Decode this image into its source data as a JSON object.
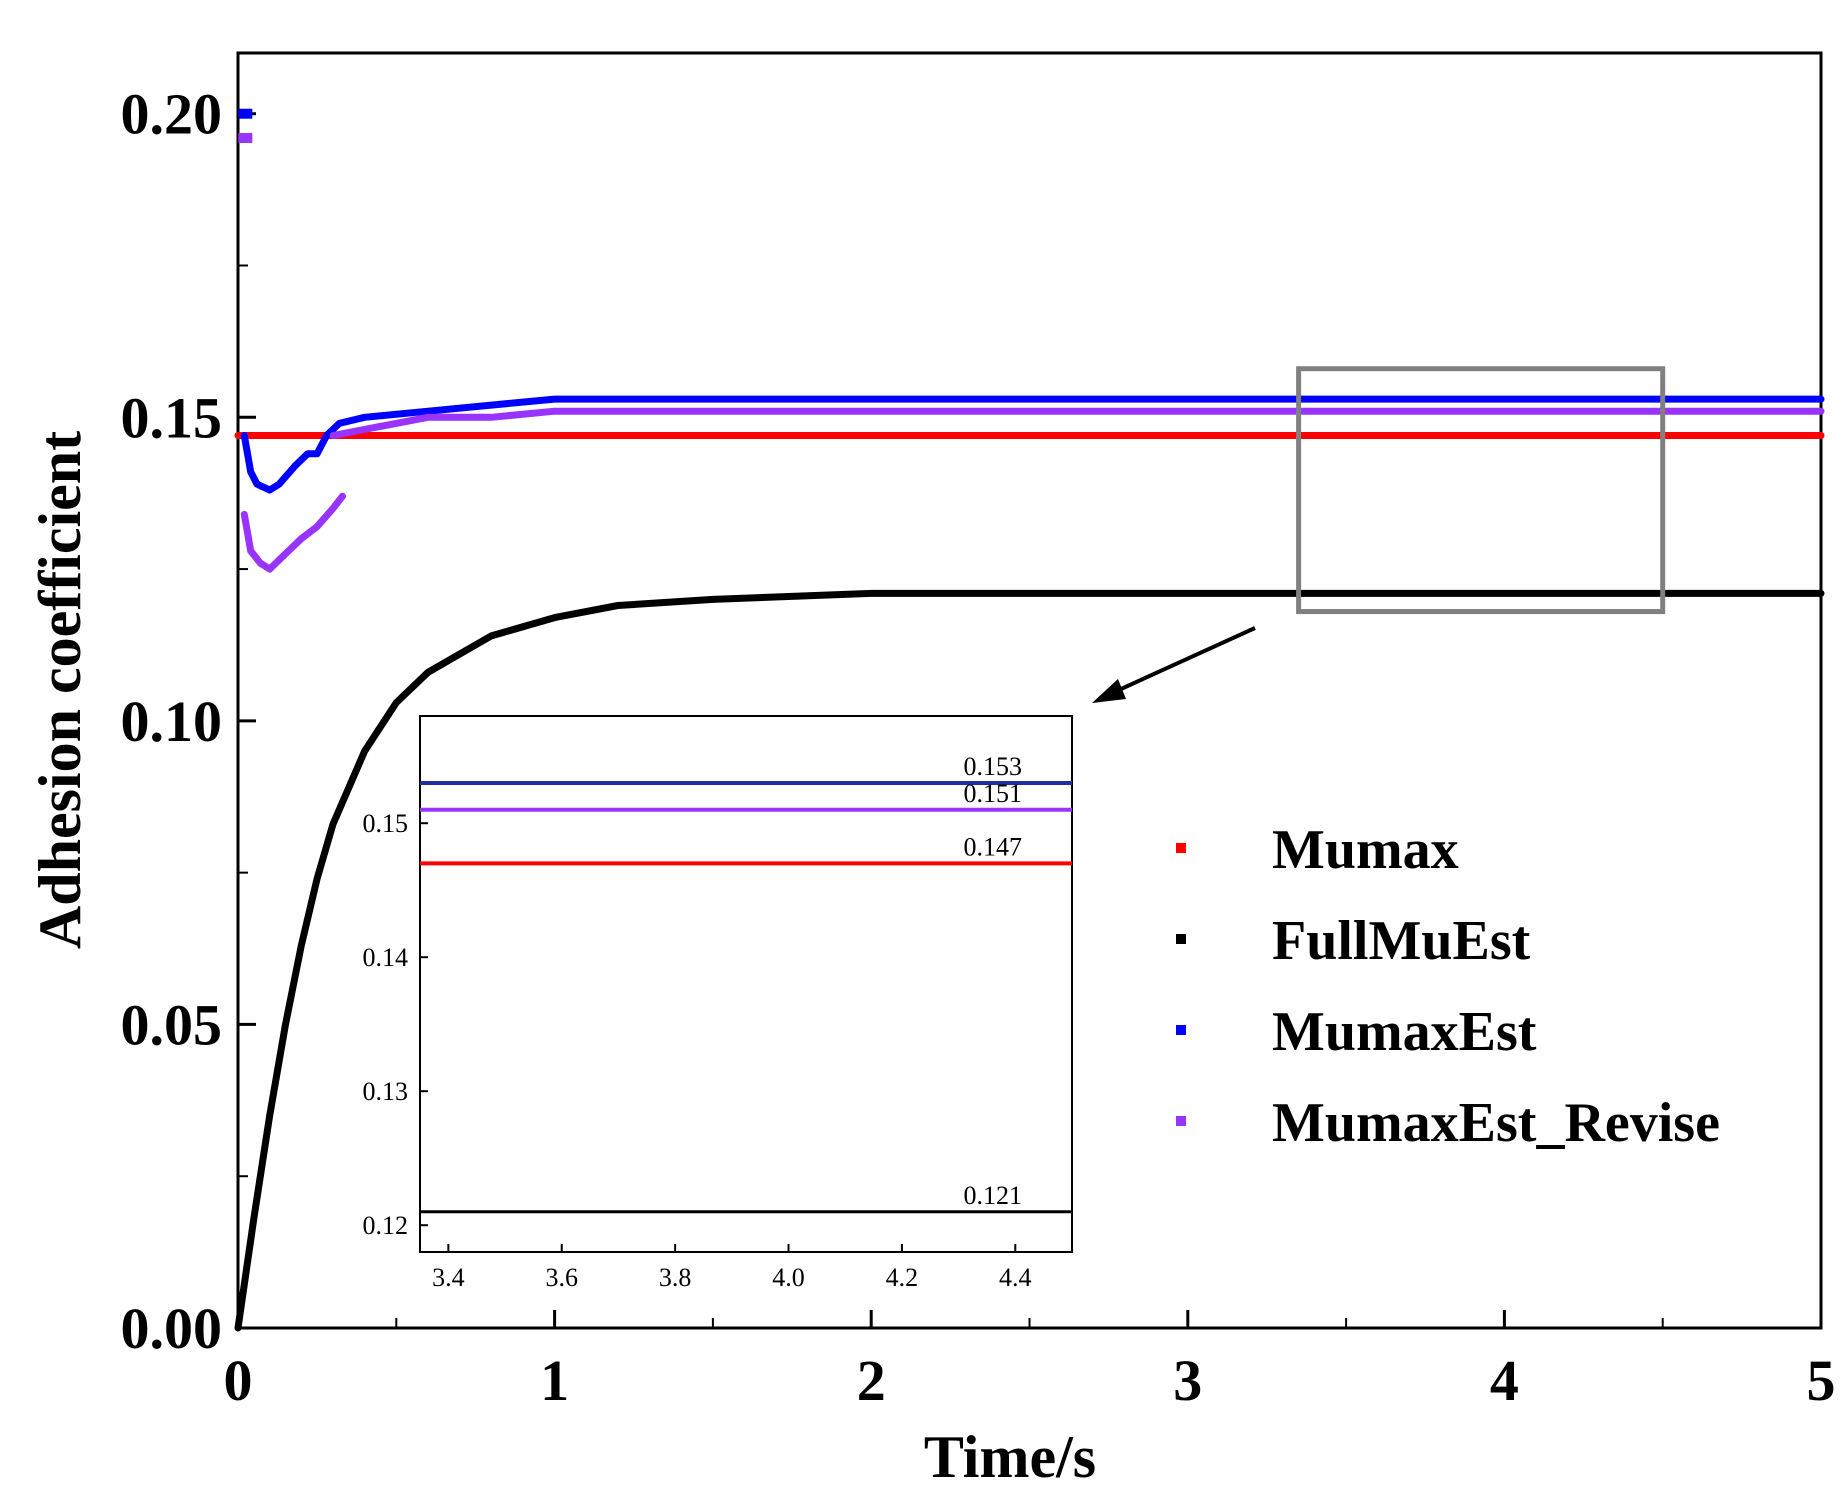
{
  "chart_data": {
    "type": "line",
    "xlabel": "Time/s",
    "ylabel": "Adhesion coefficient",
    "xlim": [
      0,
      5
    ],
    "ylim": [
      0,
      0.21
    ],
    "xticks": [
      "0",
      "1",
      "2",
      "3",
      "4",
      "5"
    ],
    "yticks": [
      "0.00",
      "0.05",
      "0.10",
      "0.15",
      "0.20"
    ],
    "legend_position": "right, mid-height",
    "series": [
      {
        "name": "Mumax",
        "color": "#ff0000",
        "points": [
          [
            0,
            0.147
          ],
          [
            5,
            0.147
          ]
        ]
      },
      {
        "name": "FullMuEst",
        "color": "#000000",
        "points": [
          [
            0,
            0
          ],
          [
            0.05,
            0.018
          ],
          [
            0.1,
            0.035
          ],
          [
            0.15,
            0.05
          ],
          [
            0.2,
            0.063
          ],
          [
            0.25,
            0.074
          ],
          [
            0.3,
            0.083
          ],
          [
            0.4,
            0.095
          ],
          [
            0.5,
            0.103
          ],
          [
            0.6,
            0.108
          ],
          [
            0.8,
            0.114
          ],
          [
            1.0,
            0.117
          ],
          [
            1.2,
            0.119
          ],
          [
            1.5,
            0.12
          ],
          [
            2.0,
            0.121
          ],
          [
            3.0,
            0.121
          ],
          [
            4.0,
            0.121
          ],
          [
            5.0,
            0.121
          ]
        ]
      },
      {
        "name": "MumaxEst",
        "color": "#0000ff",
        "points": [
          [
            0.02,
            0.147
          ],
          [
            0.04,
            0.141
          ],
          [
            0.06,
            0.139
          ],
          [
            0.1,
            0.138
          ],
          [
            0.13,
            0.139
          ],
          [
            0.18,
            0.142
          ],
          [
            0.22,
            0.144
          ],
          [
            0.25,
            0.144
          ],
          [
            0.28,
            0.147
          ],
          [
            0.32,
            0.149
          ],
          [
            0.4,
            0.15
          ],
          [
            0.6,
            0.151
          ],
          [
            0.8,
            0.152
          ],
          [
            1.0,
            0.153
          ],
          [
            2.0,
            0.153
          ],
          [
            3.0,
            0.153
          ],
          [
            4.0,
            0.153
          ],
          [
            5.0,
            0.153
          ]
        ]
      },
      {
        "name": "MumaxEst_Revise",
        "color": "#9933ff",
        "points": [
          [
            0.02,
            0.134
          ],
          [
            0.04,
            0.128
          ],
          [
            0.07,
            0.126
          ],
          [
            0.1,
            0.125
          ],
          [
            0.14,
            0.127
          ],
          [
            0.2,
            0.13
          ],
          [
            0.25,
            0.132
          ],
          [
            0.3,
            0.135
          ],
          [
            0.33,
            0.137
          ]
        ]
      },
      {
        "name": "MumaxEst_Revise",
        "color": "#9933ff",
        "points": [
          [
            0.3,
            0.147
          ],
          [
            0.4,
            0.148
          ],
          [
            0.6,
            0.15
          ],
          [
            0.8,
            0.15
          ],
          [
            1.0,
            0.151
          ],
          [
            2.0,
            0.151
          ],
          [
            3.0,
            0.151
          ],
          [
            4.0,
            0.151
          ],
          [
            5.0,
            0.151
          ]
        ]
      }
    ],
    "initial_markers": [
      {
        "series": "MumaxEst",
        "color": "#0000ff",
        "x": 0.02,
        "y": 0.2
      },
      {
        "series": "MumaxEst_Revise",
        "color": "#9933ff",
        "x": 0.02,
        "y": 0.196
      }
    ],
    "zoom_box": {
      "xlim": [
        3.35,
        4.5
      ],
      "ylim": [
        0.118,
        0.158
      ]
    },
    "inset": {
      "xlim": [
        3.35,
        4.5
      ],
      "ylim": [
        0.118,
        0.158
      ],
      "xticks": [
        "3.4",
        "3.6",
        "3.8",
        "4.0",
        "4.2",
        "4.4"
      ],
      "yticks": [
        "0.12",
        "0.13",
        "0.14",
        "0.15"
      ],
      "lines": [
        {
          "name": "MumaxEst",
          "color": "#1f2fa0",
          "y": 0.153,
          "label": "0.153"
        },
        {
          "name": "MumaxEst_Revise",
          "color": "#9933ff",
          "y": 0.151,
          "label": "0.151"
        },
        {
          "name": "Mumax",
          "color": "#ff0000",
          "y": 0.147,
          "label": "0.147"
        },
        {
          "name": "FullMuEst",
          "color": "#000000",
          "y": 0.121,
          "label": "0.121"
        }
      ]
    }
  }
}
